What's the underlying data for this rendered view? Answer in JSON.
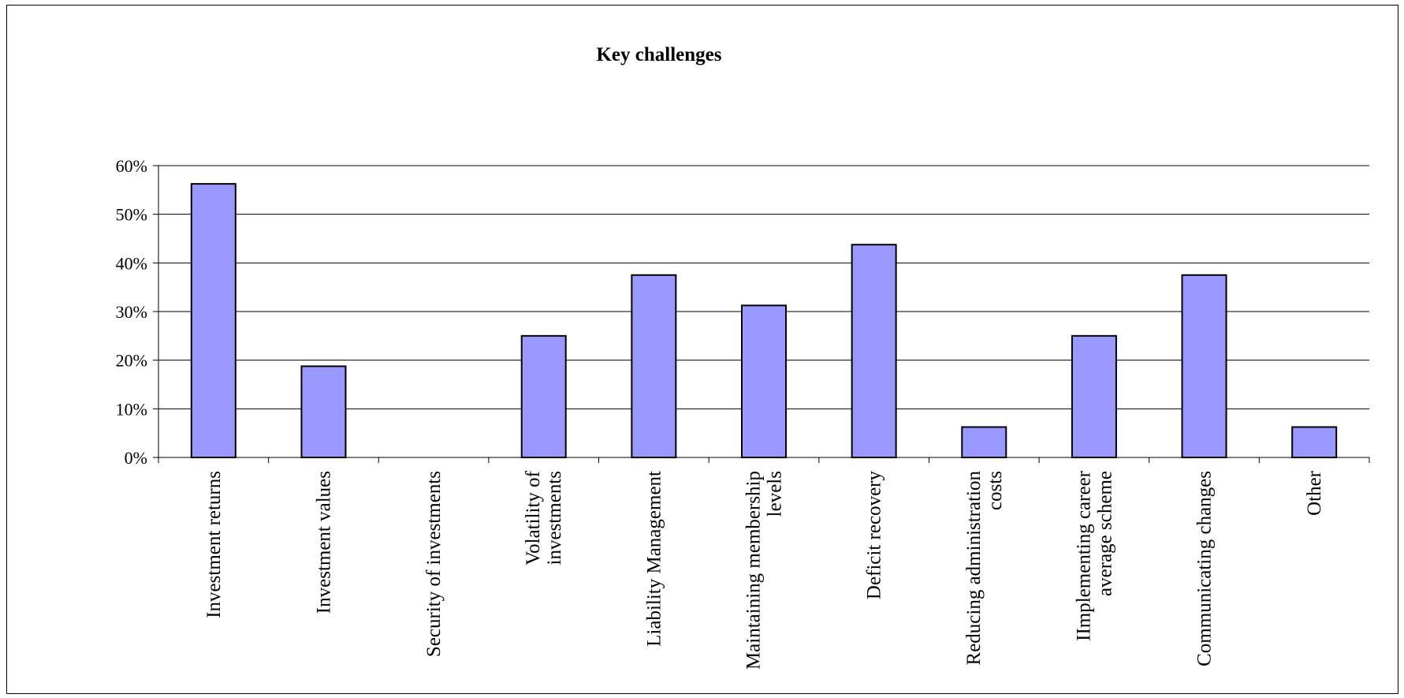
{
  "chart_data": {
    "type": "bar",
    "title": "Key challenges",
    "xlabel": "",
    "ylabel": "",
    "ylim": [
      0,
      0.6
    ],
    "y_ticks": [
      "0%",
      "10%",
      "20%",
      "30%",
      "40%",
      "50%",
      "60%"
    ],
    "y_tick_values": [
      0,
      0.1,
      0.2,
      0.3,
      0.4,
      0.5,
      0.6
    ],
    "grid": true,
    "legend": "none",
    "bar_color": "#9999FF",
    "categories": [
      [
        "Investment returns"
      ],
      [
        "Investment values"
      ],
      [
        "Security of investments"
      ],
      [
        "Volatility of",
        "investments"
      ],
      [
        "Liability Management"
      ],
      [
        "Maintaining membership",
        "levels"
      ],
      [
        "Deficit recovery"
      ],
      [
        "Reducing administration",
        "costs"
      ],
      [
        "IImplementing career",
        "average scheme"
      ],
      [
        "Communicating changes"
      ],
      [
        "Other"
      ]
    ],
    "values": [
      0.5625,
      0.1875,
      0.0,
      0.25,
      0.375,
      0.3125,
      0.4375,
      0.0625,
      0.25,
      0.375,
      0.0625
    ]
  }
}
